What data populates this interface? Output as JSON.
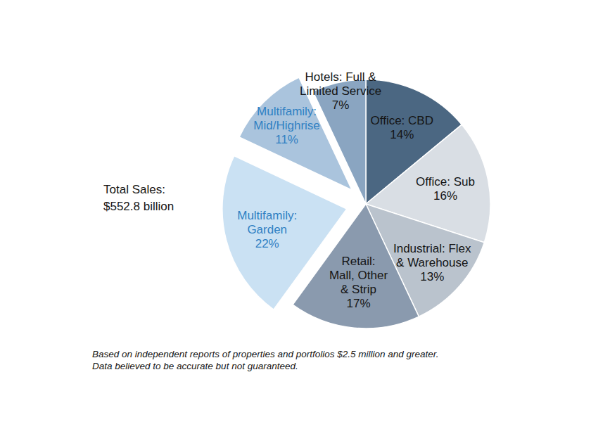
{
  "chart_data": {
    "type": "pie",
    "categories": [
      "Office: CBD",
      "Office: Sub",
      "Industrial: Flex\n& Warehouse",
      "Retail:\nMall, Other\n& Strip",
      "Multifamily:\nGarden",
      "Multifamily:\nMid/Highrise",
      "Hotels: Full &\nLimited Service"
    ],
    "values": [
      14,
      16,
      13,
      17,
      22,
      11,
      7
    ],
    "value_labels": [
      "14%",
      "16%",
      "13%",
      "17%",
      "22%",
      "11%",
      "7%"
    ],
    "colors": [
      "#4b6782",
      "#d9dee4",
      "#bac3cd",
      "#8a9aae",
      "#cae1f3",
      "#aac4dd",
      "#8aa5c1"
    ],
    "data_labels": true,
    "annotations": [
      "Total Sales:\n$552.8 billion"
    ],
    "footnote": "Based on independent reports of properties and portfolios $2.5 million and greater.\nData believed to be accurate but not guaranteed."
  }
}
